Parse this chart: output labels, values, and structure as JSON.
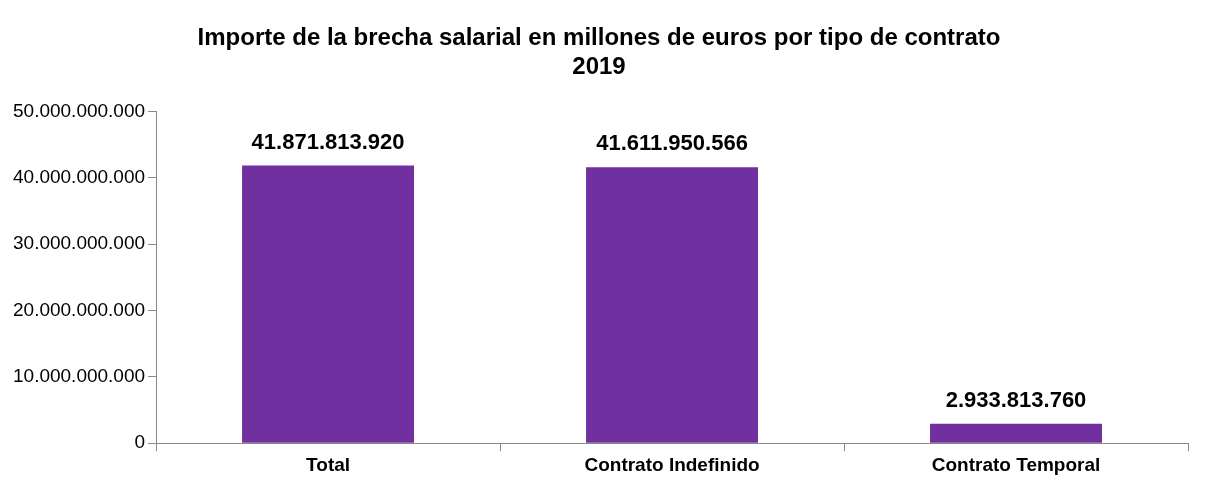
{
  "chart_data": {
    "type": "bar",
    "title": "Importe de la brecha salarial en millones de euros por tipo de contrato 2019",
    "categories": [
      "Total",
      "Contrato Indefinido",
      "Contrato Temporal"
    ],
    "values": [
      41871813920,
      41611950566,
      2933813760
    ],
    "colors": [
      "#7030a0",
      "#7030a0",
      "#7030a0"
    ],
    "value_labels": [
      "41.871.813.920",
      "41.611.950.566",
      "2.933.813.760"
    ],
    "ylim": [
      0,
      50000000000
    ],
    "yticks": [
      0,
      {
        "value": 10000000000,
        "label": "10.000.000.000"
      },
      {
        "value": 20000000000,
        "label": "20.000.000.000"
      },
      {
        "value": 30000000000,
        "label": "30.000.000.000"
      },
      {
        "value": 40000000000,
        "label": "40.000.000.000"
      },
      {
        "value": 50000000000,
        "label": "50.000.000.000"
      }
    ],
    "grid": false,
    "legend": false
  }
}
